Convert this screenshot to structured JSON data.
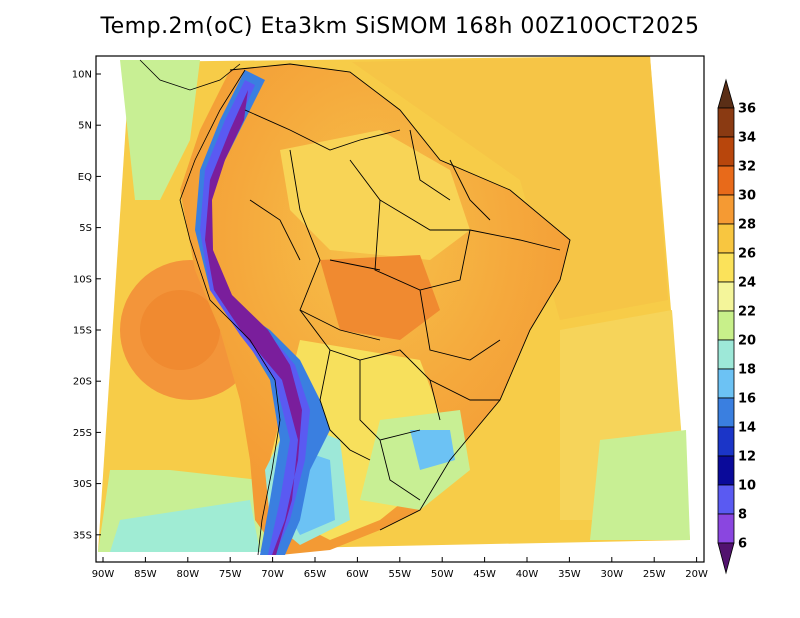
{
  "title": "Temp.2m(oC) Eta3km SiSMOM 168h 00Z10OCT2025",
  "lat_ticks": [
    "10N",
    "5N",
    "EQ",
    "5S",
    "10S",
    "15S",
    "20S",
    "25S",
    "30S",
    "35S"
  ],
  "lon_ticks": [
    "90W",
    "85W",
    "80W",
    "75W",
    "70W",
    "65W",
    "60W",
    "55W",
    "50W",
    "45W",
    "40W",
    "35W",
    "30W",
    "25W",
    "20W"
  ],
  "colorbar": {
    "labels": [
      "36",
      "34",
      "32",
      "30",
      "28",
      "26",
      "24",
      "22",
      "20",
      "18",
      "16",
      "14",
      "12",
      "10",
      "8",
      "6"
    ],
    "colors": [
      "#5a2e16",
      "#8a3a12",
      "#b8460c",
      "#e86a1a",
      "#f59a33",
      "#f8c640",
      "#fbe25a",
      "#f4f59a",
      "#c8f08a",
      "#9de8d8",
      "#6cc2f4",
      "#3a7fe0",
      "#1b35c8",
      "#0a0a9a",
      "#5a5af2",
      "#8a46e0",
      "#a73ad0",
      "#7a1e9c",
      "#52136e"
    ]
  }
}
